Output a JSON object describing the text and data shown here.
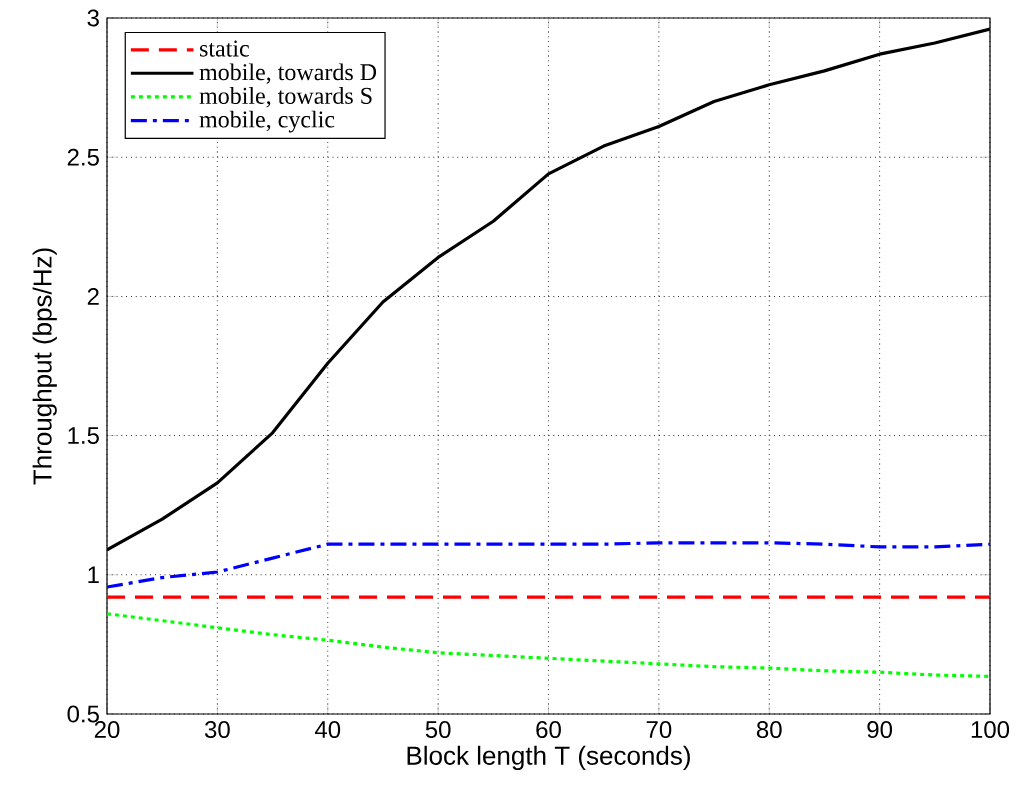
{
  "chart_data": {
    "type": "line",
    "xlabel": "Block length T (seconds)",
    "ylabel": "Throughput (bps/Hz)",
    "x": [
      20,
      25,
      30,
      35,
      40,
      45,
      50,
      55,
      60,
      65,
      70,
      75,
      80,
      85,
      90,
      95,
      100
    ],
    "xlim": [
      20,
      100
    ],
    "ylim": [
      0.5,
      3
    ],
    "xticks": [
      20,
      30,
      40,
      50,
      60,
      70,
      80,
      90,
      100
    ],
    "yticks": [
      0.5,
      1,
      1.5,
      2,
      2.5,
      3
    ],
    "grid": true,
    "legend": "top left",
    "marker": "none",
    "series": [
      {
        "name": "static",
        "color": "#ff0000",
        "line_style": "dashed",
        "values": [
          0.92,
          0.92,
          0.92,
          0.92,
          0.92,
          0.92,
          0.92,
          0.92,
          0.92,
          0.92,
          0.92,
          0.92,
          0.92,
          0.92,
          0.92,
          0.92,
          0.92
        ]
      },
      {
        "name": "mobile, towards D",
        "color": "#000000",
        "line_style": "solid",
        "values": [
          1.09,
          1.2,
          1.33,
          1.51,
          1.76,
          1.98,
          2.14,
          2.27,
          2.44,
          2.54,
          2.61,
          2.7,
          2.76,
          2.81,
          2.87,
          2.91,
          2.96
        ]
      },
      {
        "name": "mobile, towards S",
        "color": "#00ff00",
        "line_style": "dotted",
        "values": [
          0.86,
          0.835,
          0.81,
          0.785,
          0.765,
          0.74,
          0.72,
          0.71,
          0.7,
          0.69,
          0.68,
          0.67,
          0.665,
          0.655,
          0.65,
          0.64,
          0.635
        ]
      },
      {
        "name": "mobile, cyclic",
        "color": "#0000ff",
        "line_style": "dashdot",
        "values": [
          0.956,
          0.99,
          1.01,
          1.06,
          1.11,
          1.11,
          1.11,
          1.11,
          1.11,
          1.11,
          1.115,
          1.115,
          1.115,
          1.11,
          1.1,
          1.1,
          1.11
        ]
      }
    ]
  }
}
